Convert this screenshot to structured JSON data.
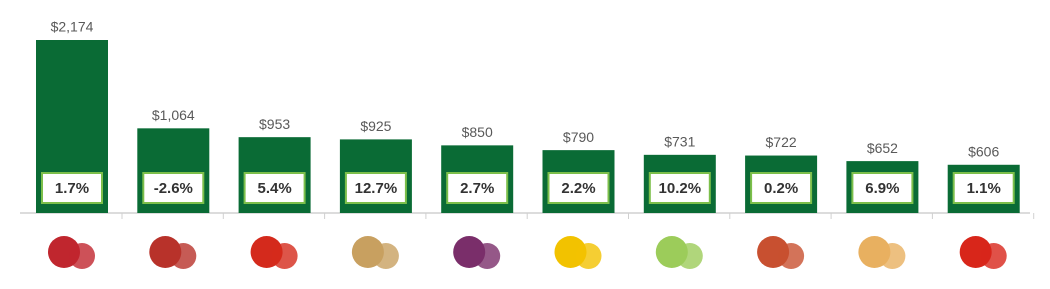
{
  "chart_data": {
    "type": "bar",
    "categories": [
      null,
      null,
      null,
      null,
      null,
      null,
      null,
      null,
      null,
      null
    ],
    "values": [
      2174,
      1064,
      953,
      925,
      850,
      790,
      731,
      722,
      652,
      606
    ],
    "value_labels": [
      "$2,174",
      "$1,064",
      "$953",
      "$925",
      "$850",
      "$790",
      "$731",
      "$722",
      "$652",
      "$606"
    ],
    "annotations": [
      "1.7%",
      "-2.6%",
      "5.4%",
      "12.7%",
      "2.7%",
      "2.2%",
      "10.2%",
      "0.2%",
      "6.9%",
      "1.1%"
    ],
    "color": "#0a6b35"
  }
}
